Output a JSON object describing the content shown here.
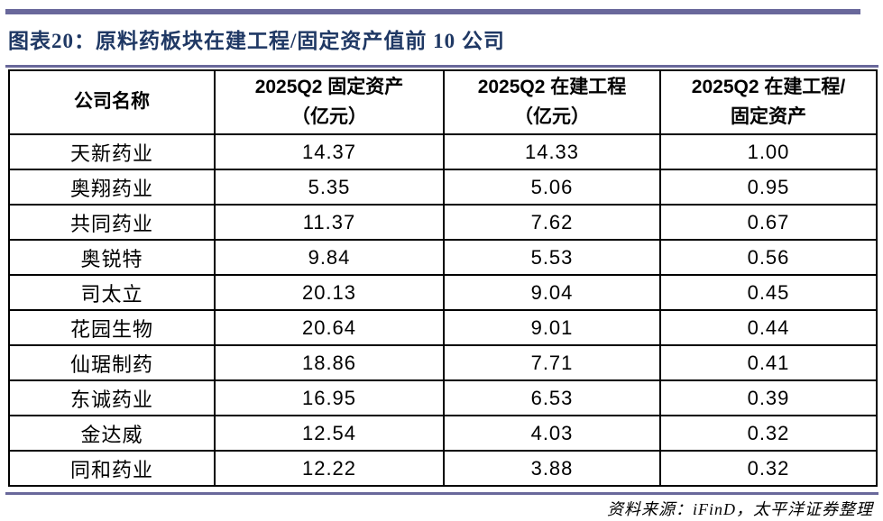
{
  "page": {
    "title": "图表20：原料药板块在建工程/固定资产值前 10 公司",
    "source_note": "资料来源：iFinD，太平洋证券整理"
  },
  "colors": {
    "accent_bar": "#69689B",
    "title_text": "#1F3864",
    "table_border": "#000000"
  },
  "table": {
    "columns": [
      "公司名称",
      "2025Q2 固定资产\n（亿元）",
      "2025Q2 在建工程\n（亿元）",
      "2025Q2 在建工程/\n固定资产"
    ],
    "rows": [
      {
        "name": "天新药业",
        "fixed_assets": "14.37",
        "cip": "14.33",
        "ratio": "1.00"
      },
      {
        "name": "奥翔药业",
        "fixed_assets": "5.35",
        "cip": "5.06",
        "ratio": "0.95"
      },
      {
        "name": "共同药业",
        "fixed_assets": "11.37",
        "cip": "7.62",
        "ratio": "0.67"
      },
      {
        "name": "奥锐特",
        "fixed_assets": "9.84",
        "cip": "5.53",
        "ratio": "0.56"
      },
      {
        "name": "司太立",
        "fixed_assets": "20.13",
        "cip": "9.04",
        "ratio": "0.45"
      },
      {
        "name": "花园生物",
        "fixed_assets": "20.64",
        "cip": "9.01",
        "ratio": "0.44"
      },
      {
        "name": "仙琚制药",
        "fixed_assets": "18.86",
        "cip": "7.71",
        "ratio": "0.41"
      },
      {
        "name": "东诚药业",
        "fixed_assets": "16.95",
        "cip": "6.53",
        "ratio": "0.39"
      },
      {
        "name": "金达威",
        "fixed_assets": "12.54",
        "cip": "4.03",
        "ratio": "0.32"
      },
      {
        "name": "同和药业",
        "fixed_assets": "12.22",
        "cip": "3.88",
        "ratio": "0.32"
      }
    ]
  }
}
